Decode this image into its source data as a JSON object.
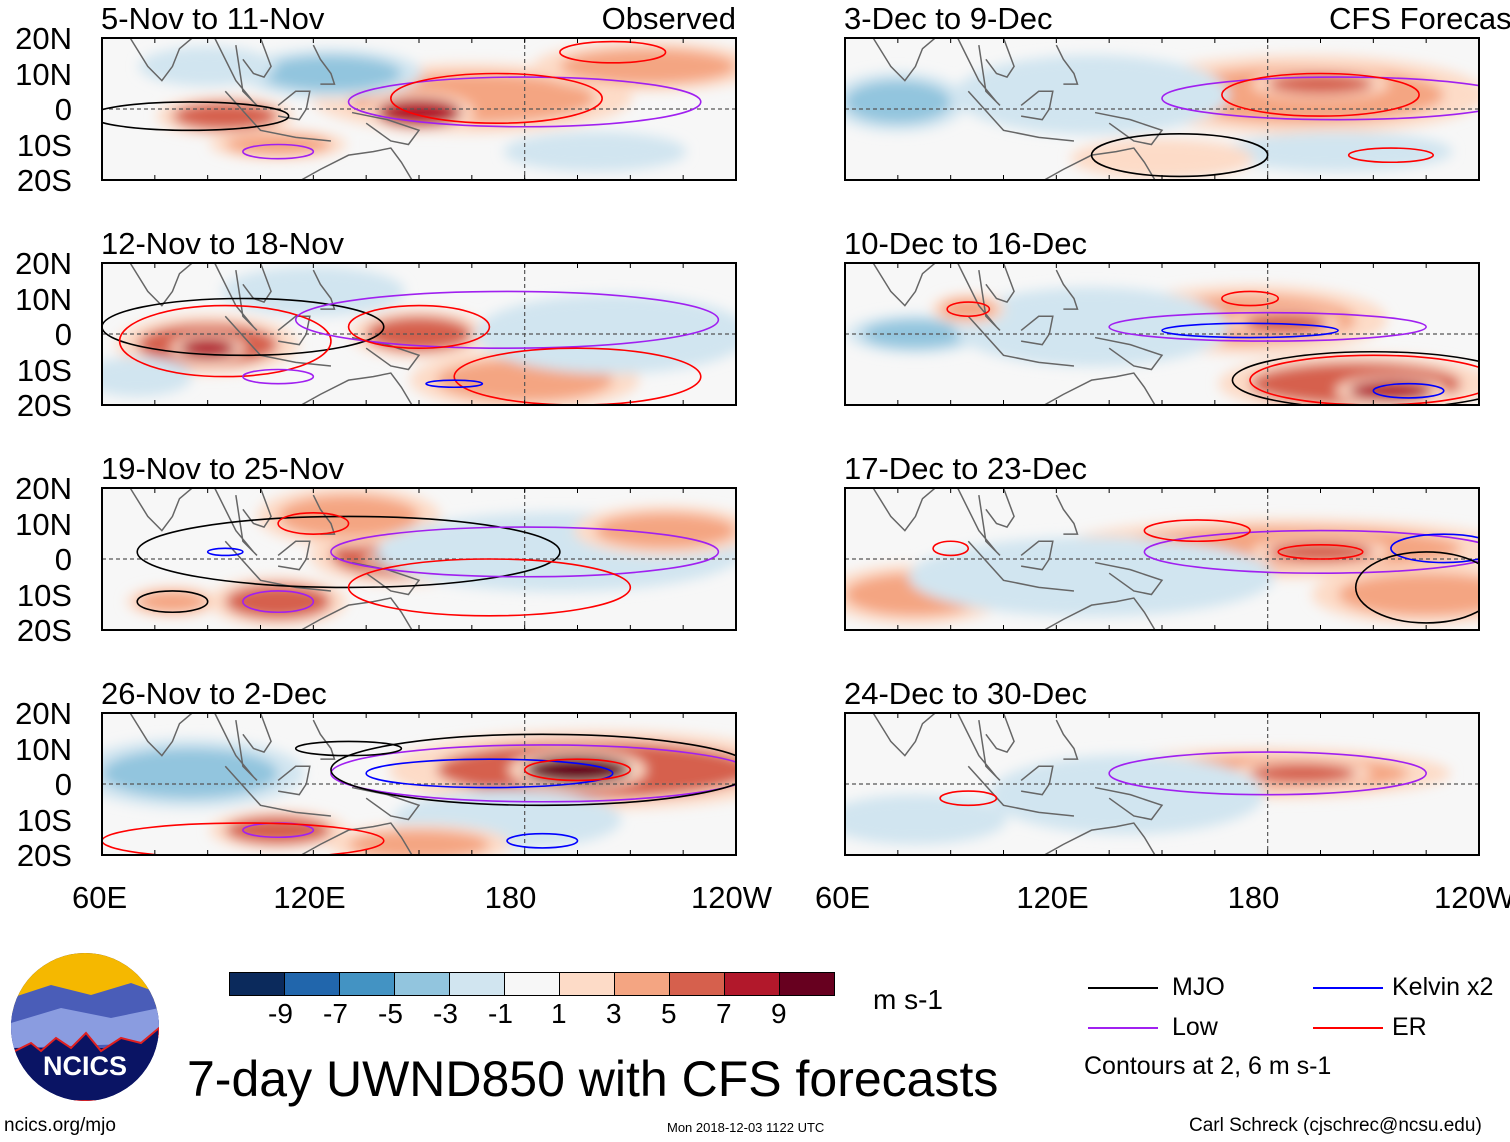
{
  "title": "7-day UWND850 with CFS forecasts",
  "footer": {
    "url": "ncics.org/mjo",
    "timestamp": "Mon 2018-12-03 1122 UTC",
    "author": "Carl Schreck (cjschrec@ncsu.edu)"
  },
  "logo_text": "NCICS",
  "chart_data": {
    "type": "heatmap",
    "variable": "850-hPa zonal wind anomaly",
    "units": "m s-1",
    "xlim": [
      60,
      240
    ],
    "ylim": [
      -20,
      20
    ],
    "x_ticks": [
      "60E",
      "120E",
      "180",
      "120W"
    ],
    "y_ticks": [
      "20N",
      "10N",
      "0",
      "10S",
      "20S"
    ],
    "colorbar": {
      "labels": [
        "-9",
        "-7",
        "-5",
        "-3",
        "-1",
        "1",
        "3",
        "5",
        "7",
        "9"
      ],
      "colors": [
        "#0b2a5c",
        "#2166ac",
        "#4393c3",
        "#92c5de",
        "#d1e5f0",
        "#f7f7f7",
        "#fddbc7",
        "#f4a582",
        "#d6604d",
        "#b2182b",
        "#67001f"
      ],
      "units": "m s-1"
    },
    "legend": {
      "items": [
        {
          "label": "MJO",
          "color": "#000000"
        },
        {
          "label": "Kelvin x2",
          "color": "#0000ff"
        },
        {
          "label": "Low",
          "color": "#a020f0"
        },
        {
          "label": "ER",
          "color": "#ff0000"
        }
      ],
      "note": "Contours at 2, 6 m s-1"
    },
    "column_labels": [
      "Observed",
      "CFS Forecast"
    ],
    "panels": [
      {
        "title": "5-Nov to 11-Nov",
        "tag": "Observed",
        "anomalies": [
          [
            165,
            3,
            35,
            7,
            4
          ],
          [
            150,
            -1,
            12,
            4,
            7
          ],
          [
            125,
            10,
            20,
            5,
            -5
          ],
          [
            90,
            12,
            15,
            4,
            -3
          ],
          [
            95,
            -2,
            15,
            4,
            5
          ],
          [
            200,
            -12,
            20,
            4,
            -3
          ],
          [
            110,
            -10,
            15,
            3,
            3
          ],
          [
            215,
            12,
            25,
            5,
            3
          ]
        ],
        "contours": [
          [
            "Low",
            180,
            2,
            50,
            7
          ],
          [
            "ER",
            172,
            3,
            30,
            7
          ],
          [
            "MJO",
            85,
            -2,
            28,
            4
          ],
          [
            "ER",
            205,
            16,
            15,
            3
          ],
          [
            "Low",
            110,
            -12,
            10,
            2
          ]
        ]
      },
      {
        "title": "3-Dec to 9-Dec",
        "tag": "CFS Forecast",
        "anomalies": [
          [
            190,
            4,
            40,
            8,
            4
          ],
          [
            195,
            7,
            15,
            3,
            6
          ],
          [
            75,
            2,
            15,
            6,
            -4
          ],
          [
            130,
            4,
            30,
            8,
            -3
          ],
          [
            200,
            -12,
            25,
            4,
            -2
          ],
          [
            150,
            -14,
            20,
            4,
            2
          ]
        ],
        "contours": [
          [
            "Low",
            200,
            3,
            50,
            6
          ],
          [
            "ER",
            195,
            4,
            28,
            6
          ],
          [
            "MJO",
            155,
            -13,
            25,
            6
          ],
          [
            "ER",
            215,
            -13,
            12,
            2
          ]
        ]
      },
      {
        "title": "12-Nov to 18-Nov",
        "tag": "",
        "anomalies": [
          [
            90,
            -3,
            20,
            6,
            6
          ],
          [
            90,
            -4,
            8,
            3,
            8
          ],
          [
            150,
            0,
            15,
            5,
            6
          ],
          [
            180,
            -13,
            25,
            6,
            4
          ],
          [
            120,
            12,
            20,
            5,
            -3
          ],
          [
            205,
            0,
            30,
            8,
            -2
          ],
          [
            70,
            -12,
            12,
            4,
            -3
          ]
        ],
        "contours": [
          [
            "MJO",
            100,
            2,
            40,
            8
          ],
          [
            "ER",
            95,
            -2,
            30,
            10
          ],
          [
            "Low",
            175,
            4,
            60,
            8
          ],
          [
            "ER",
            150,
            2,
            20,
            6
          ],
          [
            "ER",
            195,
            -12,
            35,
            8
          ],
          [
            "Low",
            110,
            -12,
            10,
            2
          ],
          [
            "Kelvin",
            160,
            -14,
            8,
            1
          ]
        ]
      },
      {
        "title": "10-Dec to 16-Dec",
        "tag": "",
        "anomalies": [
          [
            175,
            4,
            30,
            7,
            4
          ],
          [
            185,
            3,
            12,
            3,
            6
          ],
          [
            205,
            -14,
            30,
            6,
            5
          ],
          [
            215,
            -16,
            12,
            3,
            8
          ],
          [
            80,
            0,
            15,
            4,
            -4
          ],
          [
            130,
            2,
            30,
            8,
            -3
          ],
          [
            95,
            7,
            8,
            3,
            4
          ]
        ],
        "contours": [
          [
            "Low",
            180,
            2,
            45,
            4
          ],
          [
            "Kelvin",
            175,
            1,
            25,
            2
          ],
          [
            "MJO",
            210,
            -13,
            40,
            8
          ],
          [
            "ER",
            210,
            -13,
            35,
            7
          ],
          [
            "Kelvin",
            220,
            -16,
            10,
            2
          ],
          [
            "ER",
            175,
            10,
            8,
            2
          ],
          [
            "ER",
            95,
            7,
            6,
            2
          ]
        ]
      },
      {
        "title": "19-Nov to 25-Nov",
        "tag": "",
        "anomalies": [
          [
            145,
            1,
            20,
            6,
            6
          ],
          [
            145,
            0,
            8,
            2,
            9
          ],
          [
            110,
            -12,
            15,
            5,
            5
          ],
          [
            80,
            -12,
            10,
            3,
            4
          ],
          [
            130,
            12,
            20,
            6,
            3
          ],
          [
            190,
            2,
            40,
            8,
            -3
          ],
          [
            220,
            8,
            20,
            5,
            3
          ]
        ],
        "contours": [
          [
            "MJO",
            130,
            2,
            60,
            10
          ],
          [
            "Low",
            180,
            2,
            55,
            7
          ],
          [
            "ER",
            170,
            -8,
            40,
            8
          ],
          [
            "Low",
            110,
            -12,
            10,
            3
          ],
          [
            "ER",
            120,
            10,
            10,
            3
          ],
          [
            "MJO",
            80,
            -12,
            10,
            3
          ],
          [
            "Kelvin",
            95,
            2,
            5,
            1
          ]
        ]
      },
      {
        "title": "17-Dec to 23-Dec",
        "tag": "",
        "anomalies": [
          [
            185,
            3,
            50,
            6,
            4
          ],
          [
            195,
            2,
            15,
            3,
            6
          ],
          [
            80,
            -10,
            20,
            6,
            3
          ],
          [
            130,
            -5,
            40,
            8,
            -3
          ],
          [
            225,
            -10,
            25,
            6,
            3
          ]
        ],
        "contours": [
          [
            "Low",
            195,
            2,
            50,
            6
          ],
          [
            "ER",
            160,
            8,
            15,
            3
          ],
          [
            "ER",
            195,
            2,
            12,
            2
          ],
          [
            "Kelvin",
            230,
            3,
            15,
            4
          ],
          [
            "MJO",
            225,
            -8,
            20,
            10
          ],
          [
            "ER",
            90,
            3,
            5,
            2
          ]
        ]
      },
      {
        "title": "26-Nov to 2-Dec",
        "tag": "",
        "anomalies": [
          [
            200,
            4,
            45,
            8,
            6
          ],
          [
            195,
            4,
            15,
            4,
            9
          ],
          [
            110,
            -13,
            15,
            4,
            6
          ],
          [
            85,
            3,
            25,
            7,
            -5
          ],
          [
            175,
            -10,
            25,
            6,
            -3
          ],
          [
            150,
            -17,
            20,
            4,
            4
          ]
        ],
        "contours": [
          [
            "Low",
            185,
            3,
            60,
            8
          ],
          [
            "Kelvin",
            170,
            3,
            35,
            4
          ],
          [
            "MJO",
            185,
            4,
            60,
            10
          ],
          [
            "ER",
            195,
            4,
            15,
            3
          ],
          [
            "MJO",
            130,
            10,
            15,
            2
          ],
          [
            "Kelvin",
            185,
            -16,
            10,
            2
          ],
          [
            "Low",
            110,
            -13,
            10,
            2
          ],
          [
            "ER",
            100,
            -16,
            40,
            5
          ]
        ]
      },
      {
        "title": "24-Dec to 30-Dec",
        "tag": "",
        "anomalies": [
          [
            180,
            3,
            40,
            5,
            3
          ],
          [
            190,
            3,
            15,
            3,
            5
          ],
          [
            140,
            -3,
            30,
            8,
            -3
          ],
          [
            80,
            -10,
            20,
            5,
            -2
          ]
        ],
        "contours": [
          [
            "Low",
            180,
            3,
            45,
            6
          ],
          [
            "ER",
            95,
            -4,
            8,
            2
          ]
        ]
      }
    ]
  }
}
